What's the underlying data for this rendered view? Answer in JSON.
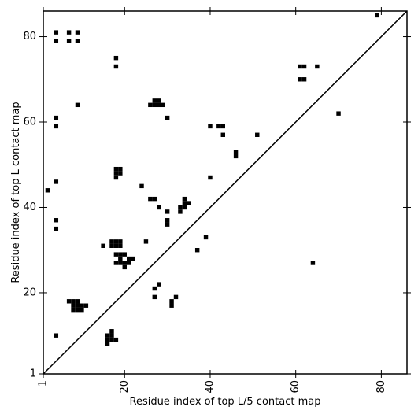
{
  "chart_data": {
    "type": "scatter",
    "marker": "square",
    "xlabel": "Residue index of top L/5 contact map",
    "ylabel": "Residue index of top L contact map",
    "xlim": [
      1,
      86
    ],
    "ylim": [
      1,
      86
    ],
    "xticks": [
      1,
      20,
      40,
      60,
      80
    ],
    "xtick_labels": [
      "1",
      "20",
      "40",
      "60",
      "80"
    ],
    "yticks": [
      1,
      20,
      40,
      60,
      80
    ],
    "ytick_labels": [
      "1",
      "20",
      "40",
      "60",
      "80"
    ],
    "diagonal": true,
    "grid": false,
    "colors": {
      "marker": "#000000",
      "axes": "#000000",
      "background": "#ffffff"
    },
    "points": [
      [
        4,
        81
      ],
      [
        7,
        81
      ],
      [
        9,
        81
      ],
      [
        4,
        79
      ],
      [
        7,
        79
      ],
      [
        9,
        79
      ],
      [
        18,
        75
      ],
      [
        18,
        73
      ],
      [
        79,
        85
      ],
      [
        61,
        73
      ],
      [
        62,
        73
      ],
      [
        65,
        73
      ],
      [
        61,
        70
      ],
      [
        62,
        70
      ],
      [
        9,
        64
      ],
      [
        26,
        64
      ],
      [
        27,
        64
      ],
      [
        28,
        64
      ],
      [
        29,
        64
      ],
      [
        27,
        65
      ],
      [
        28,
        65
      ],
      [
        4,
        61
      ],
      [
        4,
        59
      ],
      [
        30,
        61
      ],
      [
        70,
        62
      ],
      [
        40,
        59
      ],
      [
        42,
        59
      ],
      [
        43,
        59
      ],
      [
        43,
        57
      ],
      [
        51,
        57
      ],
      [
        46,
        53
      ],
      [
        46,
        52
      ],
      [
        18,
        49
      ],
      [
        19,
        49
      ],
      [
        18,
        48
      ],
      [
        19,
        48
      ],
      [
        18,
        47
      ],
      [
        4,
        46
      ],
      [
        2,
        44
      ],
      [
        24,
        45
      ],
      [
        40,
        47
      ],
      [
        26,
        42
      ],
      [
        27,
        42
      ],
      [
        28,
        40
      ],
      [
        34,
        42
      ],
      [
        34,
        41
      ],
      [
        35,
        41
      ],
      [
        33,
        40
      ],
      [
        34,
        40
      ],
      [
        33,
        39
      ],
      [
        30,
        39
      ],
      [
        30,
        37
      ],
      [
        30,
        36
      ],
      [
        4,
        37
      ],
      [
        4,
        35
      ],
      [
        39,
        33
      ],
      [
        25,
        32
      ],
      [
        15,
        31
      ],
      [
        17,
        32
      ],
      [
        18,
        32
      ],
      [
        19,
        32
      ],
      [
        17,
        31
      ],
      [
        18,
        31
      ],
      [
        19,
        31
      ],
      [
        37,
        30
      ],
      [
        18,
        29
      ],
      [
        19,
        29
      ],
      [
        20,
        29
      ],
      [
        19,
        28
      ],
      [
        21,
        28
      ],
      [
        22,
        28
      ],
      [
        18,
        27
      ],
      [
        19,
        27
      ],
      [
        20,
        27
      ],
      [
        21,
        27
      ],
      [
        20,
        26
      ],
      [
        64,
        27
      ],
      [
        28,
        22
      ],
      [
        27,
        21
      ],
      [
        27,
        19
      ],
      [
        32,
        19
      ],
      [
        31,
        18
      ],
      [
        31,
        17
      ],
      [
        7,
        18
      ],
      [
        8,
        18
      ],
      [
        9,
        18
      ],
      [
        8,
        17
      ],
      [
        9,
        17
      ],
      [
        10,
        17
      ],
      [
        11,
        17
      ],
      [
        8,
        16
      ],
      [
        9,
        16
      ],
      [
        10,
        16
      ],
      [
        17,
        11
      ],
      [
        16,
        10
      ],
      [
        17,
        10
      ],
      [
        16,
        9
      ],
      [
        17,
        9
      ],
      [
        18,
        9
      ],
      [
        16,
        8
      ],
      [
        4,
        10
      ]
    ]
  }
}
